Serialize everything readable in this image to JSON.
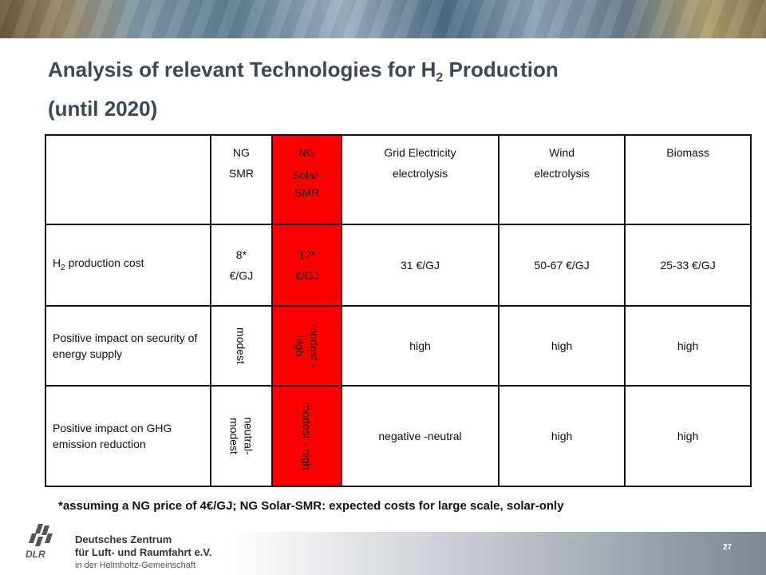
{
  "title": {
    "line1_pre": "Analysis of relevant Technologies for H",
    "line1_sub": "2",
    "line1_post": " Production",
    "line2": "(until 2020)"
  },
  "table": {
    "headers": [
      {
        "l1": "NG",
        "l2": "SMR",
        "l3": ""
      },
      {
        "l1": "NG",
        "l2": "Solar-",
        "l3": "SMR"
      },
      {
        "l1": "Grid Electricity",
        "l2": "electrolysis",
        "l3": ""
      },
      {
        "l1": "Wind",
        "l2": "electrolysis",
        "l3": ""
      },
      {
        "l1": "Biomass",
        "l2": "",
        "l3": ""
      }
    ],
    "cost": {
      "label_pre": "H",
      "label_sub": "2",
      "label_post": " production cost",
      "ng_smr_l1": "8*",
      "ng_smr_l2": "€/GJ",
      "ng_solar_l1": "12*",
      "ng_solar_l2": "€/GJ",
      "grid": "31 €/GJ",
      "wind": "50-67 €/GJ",
      "biomass": "25-33 €/GJ"
    },
    "security": {
      "label": "Positive impact on security of energy supply",
      "ng_smr": "modest",
      "ng_solar_l1": "modest -",
      "ng_solar_l2": "high",
      "grid": "high",
      "wind": "high",
      "biomass": "high"
    },
    "ghg": {
      "label": "Positive impact on GHG emission reduction",
      "ng_smr_l1": "neutral-",
      "ng_smr_l2": "modest",
      "ng_solar": "modest - high",
      "grid": "negative -neutral",
      "wind": "high",
      "biomass": "high"
    }
  },
  "footnote": "*assuming a NG price of 4€/GJ; NG Solar-SMR: expected costs for large scale, solar-only",
  "footer": {
    "line1": "Deutsches Zentrum",
    "line2": "für Luft- und Raumfahrt e.V.",
    "line3": "in der Helmholtz-Gemeinschaft",
    "logo_text": "DLR",
    "page": "27"
  }
}
